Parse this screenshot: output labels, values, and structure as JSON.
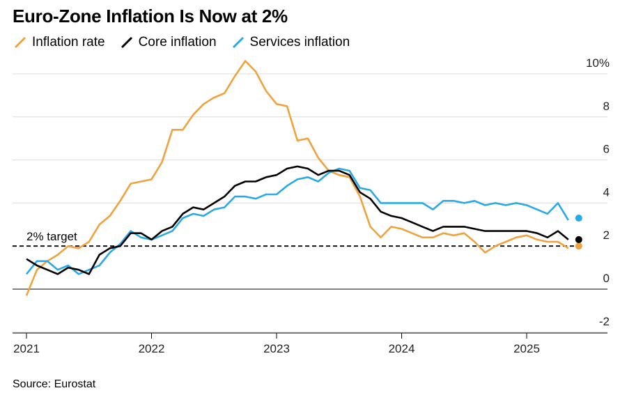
{
  "title": "Euro-Zone Inflation Is Now at 2%",
  "source": "Source: Eurostat",
  "legend": [
    {
      "label": "Inflation rate",
      "color": "#f0a23c"
    },
    {
      "label": "Core inflation",
      "color": "#000000"
    },
    {
      "label": "Services inflation",
      "color": "#2aa9e8"
    }
  ],
  "chart_data": {
    "type": "line",
    "title": "Euro-Zone Inflation Is Now at 2%",
    "xlabel": "",
    "ylabel": "",
    "x": [
      "2021-01",
      "2021-02",
      "2021-03",
      "2021-04",
      "2021-05",
      "2021-06",
      "2021-07",
      "2021-08",
      "2021-09",
      "2021-10",
      "2021-11",
      "2021-12",
      "2022-01",
      "2022-02",
      "2022-03",
      "2022-04",
      "2022-05",
      "2022-06",
      "2022-07",
      "2022-08",
      "2022-09",
      "2022-10",
      "2022-11",
      "2022-12",
      "2023-01",
      "2023-02",
      "2023-03",
      "2023-04",
      "2023-05",
      "2023-06",
      "2023-07",
      "2023-08",
      "2023-09",
      "2023-10",
      "2023-11",
      "2023-12",
      "2024-01",
      "2024-02",
      "2024-03",
      "2024-04",
      "2024-05",
      "2024-06",
      "2024-07",
      "2024-08",
      "2024-09",
      "2024-10",
      "2024-11",
      "2024-12",
      "2025-01",
      "2025-02",
      "2025-03",
      "2025-04",
      "2025-05",
      "2025-06"
    ],
    "x_tick_labels": [
      "2021",
      "2022",
      "2023",
      "2024",
      "2025"
    ],
    "y_tick_labels": [
      "10%",
      "8",
      "6",
      "4",
      "2",
      "0",
      "-2"
    ],
    "ylim": [
      -2,
      10.5
    ],
    "grid": true,
    "legend_position": "top-left",
    "series": [
      {
        "name": "Inflation rate",
        "color": "#f0a23c",
        "values": [
          -0.3,
          0.9,
          1.3,
          1.6,
          2.0,
          1.9,
          2.2,
          3.0,
          3.4,
          4.1,
          4.9,
          5.0,
          5.1,
          5.9,
          7.4,
          7.4,
          8.1,
          8.6,
          8.9,
          9.1,
          9.9,
          10.6,
          10.1,
          9.2,
          8.6,
          8.5,
          6.9,
          7.0,
          6.1,
          5.5,
          5.3,
          5.2,
          4.3,
          2.9,
          2.4,
          2.9,
          2.8,
          2.6,
          2.4,
          2.4,
          2.6,
          2.5,
          2.6,
          2.2,
          1.7,
          2.0,
          2.2,
          2.4,
          2.5,
          2.3,
          2.2,
          2.2,
          1.9,
          2.0
        ]
      },
      {
        "name": "Core inflation",
        "color": "#000000",
        "values": [
          1.4,
          1.1,
          0.9,
          0.7,
          1.0,
          0.9,
          0.7,
          1.6,
          1.9,
          2.0,
          2.6,
          2.6,
          2.3,
          2.7,
          2.9,
          3.5,
          3.8,
          3.7,
          4.0,
          4.3,
          4.8,
          5.0,
          5.0,
          5.2,
          5.3,
          5.6,
          5.7,
          5.6,
          5.3,
          5.5,
          5.5,
          5.3,
          4.5,
          4.2,
          3.6,
          3.4,
          3.3,
          3.1,
          2.9,
          2.7,
          2.9,
          2.9,
          2.9,
          2.8,
          2.7,
          2.7,
          2.7,
          2.7,
          2.7,
          2.6,
          2.4,
          2.7,
          2.3,
          2.3
        ]
      },
      {
        "name": "Services inflation",
        "color": "#2aa9e8",
        "values": [
          0.7,
          1.3,
          1.3,
          0.9,
          1.1,
          0.7,
          0.9,
          1.1,
          1.7,
          2.1,
          2.7,
          2.4,
          2.3,
          2.5,
          2.7,
          3.3,
          3.5,
          3.4,
          3.7,
          3.8,
          4.3,
          4.3,
          4.2,
          4.4,
          4.4,
          4.8,
          5.1,
          5.2,
          5.0,
          5.4,
          5.6,
          5.5,
          4.7,
          4.6,
          4.0,
          4.0,
          4.0,
          4.0,
          4.0,
          3.7,
          4.1,
          4.1,
          4.0,
          4.1,
          3.9,
          4.0,
          3.9,
          4.0,
          3.9,
          3.7,
          3.5,
          4.0,
          3.2,
          3.3
        ]
      }
    ],
    "annotations": [
      {
        "text": "2% target",
        "y": 2,
        "style": "dashed"
      }
    ]
  }
}
